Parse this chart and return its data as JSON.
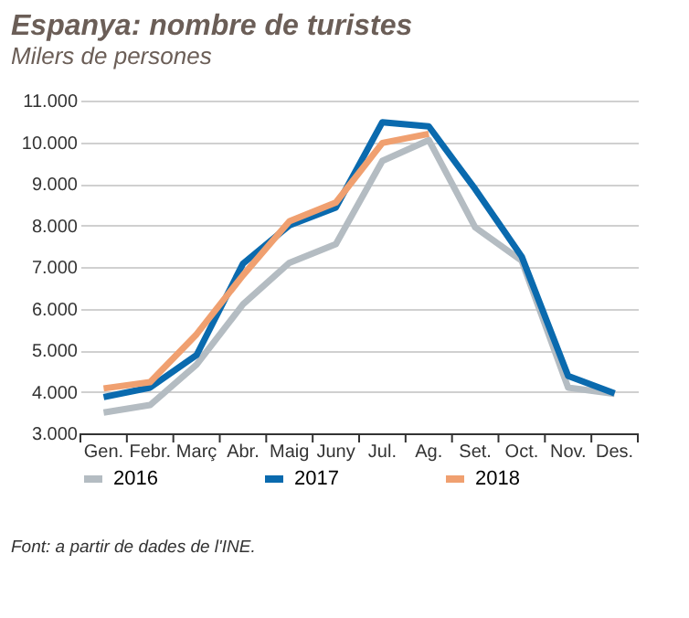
{
  "chart_data": {
    "type": "line",
    "title": "Espanya: nombre de turistes",
    "subtitle": "Milers de persones",
    "categories": [
      "Gen.",
      "Febr.",
      "Març",
      "Abr.",
      "Maig",
      "Juny",
      "Jul.",
      "Ag.",
      "Set.",
      "Oct.",
      "Nov.",
      "Des."
    ],
    "series": [
      {
        "name": "2016",
        "color": "#b4bcc2",
        "values": [
          3500,
          3680,
          4650,
          6100,
          7100,
          7550,
          9550,
          10050,
          7950,
          7150,
          4100,
          3950
        ]
      },
      {
        "name": "2017",
        "color": "#0a6aae",
        "values": [
          3870,
          4100,
          4880,
          7080,
          8000,
          8430,
          10480,
          10380,
          8870,
          7250,
          4380,
          3960
        ]
      },
      {
        "name": "2018",
        "color": "#f0a070",
        "values": [
          4080,
          4230,
          5380,
          6800,
          8100,
          8550,
          9980,
          10200,
          null,
          null,
          null,
          null
        ]
      }
    ],
    "ylim": [
      3000,
      11000
    ],
    "yticks": [
      {
        "value": 3000,
        "label": "3.000"
      },
      {
        "value": 4000,
        "label": "4.000"
      },
      {
        "value": 5000,
        "label": "5.000"
      },
      {
        "value": 6000,
        "label": "6.000"
      },
      {
        "value": 7000,
        "label": "7.000"
      },
      {
        "value": 8000,
        "label": "8.000"
      },
      {
        "value": 9000,
        "label": "9.000"
      },
      {
        "value": 10000,
        "label": "10.000"
      },
      {
        "value": 11000,
        "label": "11.000"
      }
    ],
    "grid": "y",
    "legend": "bottom",
    "marker": "none",
    "line_style": "solid",
    "annotations": [
      "Font: a partir de dades de l'INE."
    ]
  }
}
